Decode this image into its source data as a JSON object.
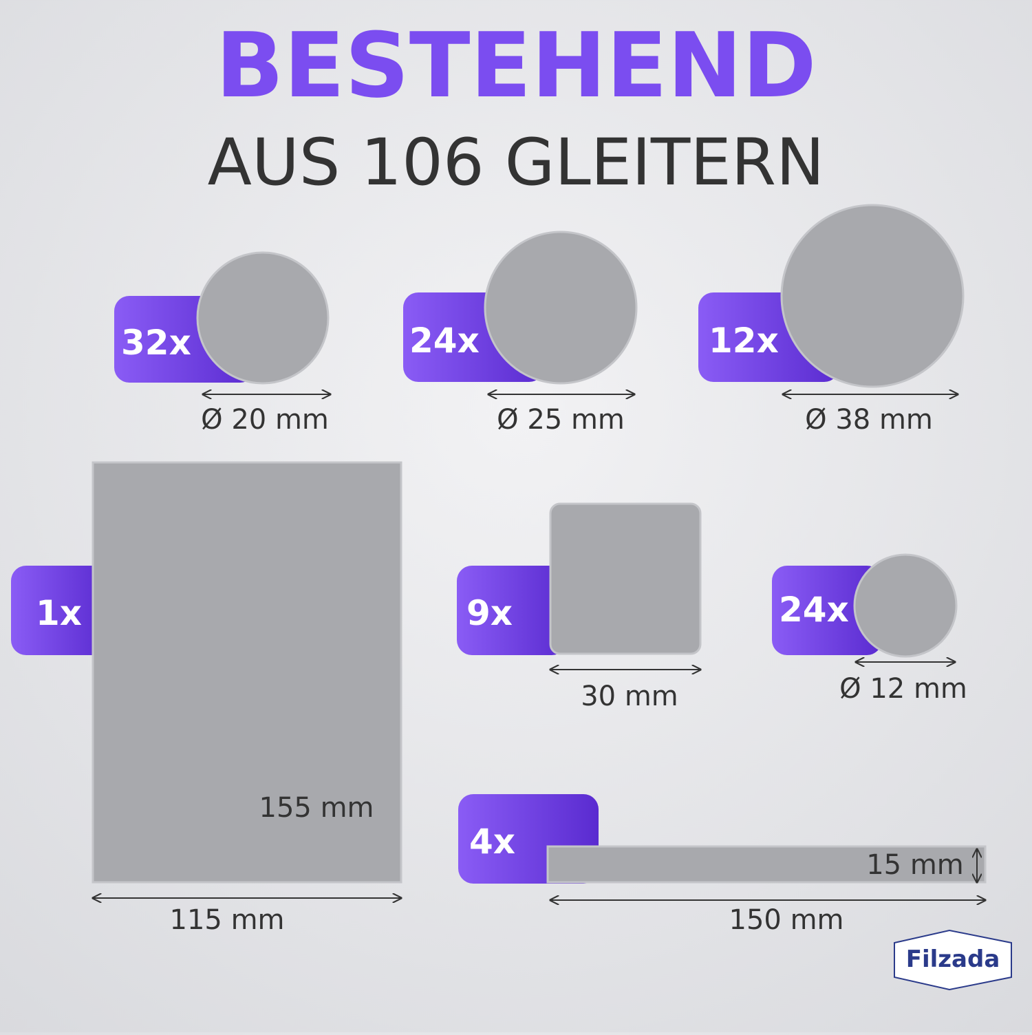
{
  "header": {
    "title": "BESTEHEND",
    "subtitle": "AUS 106 GLEITERN"
  },
  "items": [
    {
      "count": "32x",
      "size": "Ø 20 mm"
    },
    {
      "count": "24x",
      "size": "Ø 25 mm"
    },
    {
      "count": "12x",
      "size": "Ø 38 mm"
    },
    {
      "count": "1x",
      "width": "115 mm",
      "height": "155 mm"
    },
    {
      "count": "9x",
      "size": "30 mm"
    },
    {
      "count": "24x",
      "size": "Ø 12 mm"
    },
    {
      "count": "4x",
      "width": "150 mm",
      "height": "15 mm"
    }
  ],
  "brand": "Filzada"
}
